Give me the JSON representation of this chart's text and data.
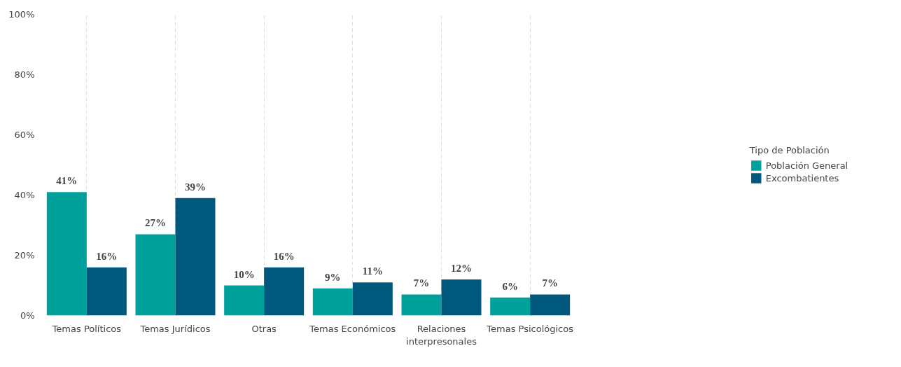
{
  "chart_data": {
    "type": "bar",
    "categories": [
      "Temas Políticos",
      "Temas Jurídicos",
      "Otras",
      "Temas Económicos",
      "Relaciones interpresonales",
      "Temas Psicológicos"
    ],
    "series": [
      {
        "name": "Población General",
        "color": "#00a19a",
        "values": [
          41,
          27,
          10,
          9,
          7,
          6
        ],
        "value_labels": [
          "41%",
          "27%",
          "10%",
          "9%",
          "7%",
          "6%"
        ]
      },
      {
        "name": "Excombatientes",
        "color": "#00587c",
        "values": [
          16,
          39,
          16,
          11,
          12,
          7
        ],
        "value_labels": [
          "16%",
          "39%",
          "16%",
          "11%",
          "12%",
          "7%"
        ]
      }
    ],
    "legend_title": "Tipo de Población",
    "legend": "right",
    "grid": "x",
    "ylim": [
      0,
      100
    ],
    "yticks": [
      {
        "value": 0,
        "label": "0%"
      },
      {
        "value": 20,
        "label": "20%"
      },
      {
        "value": 40,
        "label": "40%"
      },
      {
        "value": 60,
        "label": "60%"
      },
      {
        "value": 80,
        "label": "80%"
      },
      {
        "value": 100,
        "label": "100%"
      }
    ]
  }
}
